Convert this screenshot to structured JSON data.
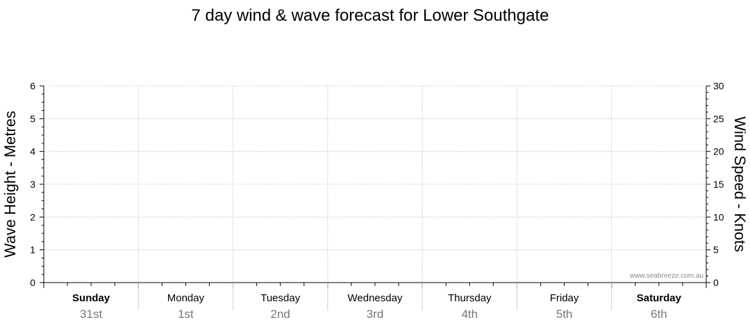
{
  "chart_data": {
    "type": "line",
    "title": "7 day wind & wave forecast for Lower Southgate",
    "left_axis": {
      "label": "Wave Height - Metres",
      "ylim": [
        0,
        6
      ],
      "ticks": [
        "0",
        "1",
        "2",
        "3",
        "4",
        "5",
        "6"
      ]
    },
    "right_axis": {
      "label": "Wind Speed - Knots",
      "ylim": [
        0,
        30
      ],
      "ticks": [
        "0",
        "5",
        "10",
        "15",
        "20",
        "25",
        "30"
      ]
    },
    "days": [
      {
        "day": "Sunday",
        "date": "31st",
        "bold": true
      },
      {
        "day": "Monday",
        "date": "1st",
        "bold": false
      },
      {
        "day": "Tuesday",
        "date": "2nd",
        "bold": false
      },
      {
        "day": "Wednesday",
        "date": "3rd",
        "bold": false
      },
      {
        "day": "Thursday",
        "date": "4th",
        "bold": false
      },
      {
        "day": "Friday",
        "date": "5th",
        "bold": false
      },
      {
        "day": "Saturday",
        "date": "6th",
        "bold": true
      }
    ],
    "series": [],
    "grid": true,
    "watermark": "www.seabreeze.com.au"
  }
}
